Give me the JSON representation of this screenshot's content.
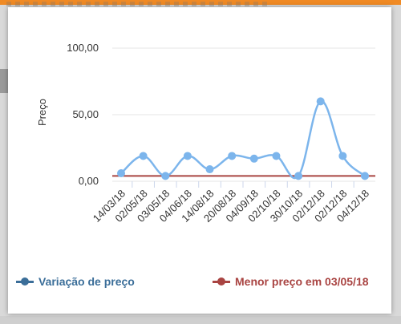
{
  "colors": {
    "series_line": "#7cb5ec",
    "series_point": "#7cb5ec",
    "min_line": "#a94442",
    "legend_variation": "#3b6e99",
    "legend_min": "#a94442",
    "grid": "#e6e6e6"
  },
  "chart_data": {
    "type": "line",
    "ylabel": "Preço",
    "ylim": [
      0,
      100
    ],
    "y_ticks": [
      "0,00",
      "50,00",
      "100,00"
    ],
    "categories": [
      "14/03/18",
      "02/05/18",
      "03/05/18",
      "04/06/18",
      "14/08/18",
      "20/08/18",
      "04/09/18",
      "02/10/18",
      "30/10/18",
      "02/12/18",
      "02/12/18",
      "04/12/18"
    ],
    "series": [
      {
        "name": "Variação de preço",
        "values": [
          6,
          19,
          4,
          19,
          9,
          19,
          17,
          19,
          4,
          60,
          19,
          4
        ]
      }
    ],
    "reference_lines": [
      {
        "name": "Menor preço em 03/05/18",
        "value": 4
      }
    ],
    "grid": true,
    "legend_position": "bottom"
  }
}
